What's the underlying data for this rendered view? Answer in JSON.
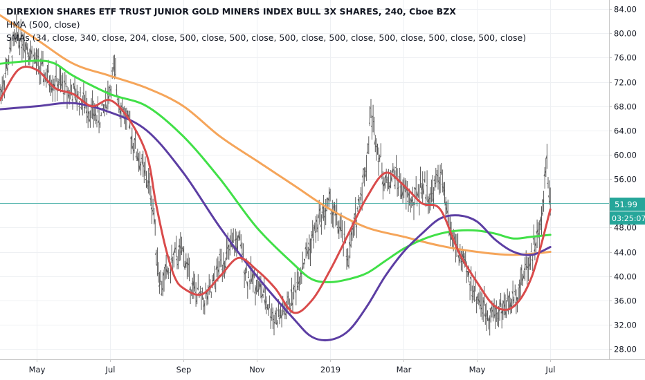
{
  "header": {
    "title": "DIREXION SHARES ETF TRUST JUNIOR GOLD MINERS INDEX BULL 3X SHARES, 240, Cboe BZX",
    "hma_label": "HMA (500, close)",
    "sma_label": "SMAs (34, close, 340, close, 204, close, 500, close, 500, close, 500, close, 500, close, 500, close, 500, close, 500, close)"
  },
  "price_tag": {
    "price": "51.99",
    "countdown": "03:25:07"
  },
  "colors": {
    "price": "#5a5a5a",
    "hma": "#6a6a6a",
    "sma34": "#d94b4b",
    "sma204": "#41e048",
    "sma340": "#f5a55a",
    "sma500": "#5c3ea3",
    "last_price_line": "#26a69a",
    "price_tag": "#26a69a"
  },
  "chart_data": {
    "type": "line",
    "title": "DIREXION SHARES ETF TRUST JUNIOR GOLD MINERS INDEX BULL 3X SHARES, 240, Cboe BZX",
    "y_ticks": [
      "28.00",
      "32.00",
      "36.00",
      "40.00",
      "44.00",
      "48.00",
      "52.00",
      "56.00",
      "60.00",
      "64.00",
      "68.00",
      "72.00",
      "76.00",
      "80.00",
      "84.00"
    ],
    "ylim": [
      26.3,
      85.5
    ],
    "x_ticks": [
      "May",
      "Jul",
      "Sep",
      "Nov",
      "2019",
      "Mar",
      "May",
      "Jul"
    ],
    "xlim": [
      0,
      16.6
    ],
    "x_tick_pos": [
      1,
      3,
      5,
      7,
      9,
      11,
      13,
      15
    ],
    "last_price": 51.99,
    "grid": true,
    "series": [
      {
        "name": "price",
        "style": "bars",
        "x": [
          0,
          0.25,
          0.5,
          0.75,
          1,
          1.25,
          1.5,
          1.75,
          2,
          2.25,
          2.5,
          2.75,
          3,
          3.1,
          3.25,
          3.5,
          3.75,
          4,
          4.1,
          4.2,
          4.3,
          4.4,
          4.5,
          4.75,
          5,
          5.25,
          5.5,
          5.75,
          6,
          6.25,
          6.5,
          6.75,
          7,
          7.25,
          7.5,
          7.75,
          8,
          8.25,
          8.5,
          8.75,
          9,
          9.25,
          9.5,
          9.75,
          10,
          10.1,
          10.25,
          10.4,
          10.5,
          10.75,
          11,
          11.25,
          11.5,
          11.75,
          12,
          12.25,
          12.5,
          12.75,
          13,
          13.25,
          13.5,
          13.75,
          14,
          14.25,
          14.5,
          14.75,
          14.9,
          15
        ],
        "values": [
          70,
          76,
          80,
          78,
          75,
          73,
          72,
          71,
          70,
          69,
          67,
          66,
          71,
          74,
          69,
          65,
          60,
          56,
          54,
          50,
          42,
          38,
          40,
          43,
          44,
          38,
          36,
          37,
          42,
          44,
          46,
          40,
          39,
          36,
          33,
          34,
          37,
          42,
          46,
          50,
          52,
          48,
          43,
          51,
          59,
          67,
          63,
          58,
          55,
          57,
          54,
          52,
          55,
          53,
          57,
          48,
          44,
          40,
          37,
          34,
          34,
          35,
          36,
          40,
          44,
          48,
          60,
          52
        ]
      },
      {
        "name": "SMA 34",
        "x": [
          0,
          0.5,
          1,
          1.5,
          2,
          2.5,
          3,
          3.5,
          4,
          4.25,
          4.5,
          4.75,
          5,
          5.5,
          6,
          6.5,
          7,
          7.5,
          8,
          8.5,
          9,
          9.5,
          10,
          10.5,
          11,
          11.5,
          12,
          12.5,
          13,
          13.5,
          14,
          14.5,
          15
        ],
        "values": [
          69,
          74,
          74,
          71,
          70,
          68,
          69,
          66,
          60,
          52,
          45,
          40,
          38,
          37,
          40,
          43,
          41,
          38,
          34,
          36,
          41,
          47,
          53,
          57,
          55,
          52,
          51,
          44,
          39,
          35,
          35,
          40,
          51
        ]
      },
      {
        "name": "SMA 204",
        "x": [
          0,
          1,
          1.5,
          2,
          3,
          4,
          5,
          6,
          7,
          8,
          8.5,
          9,
          9.5,
          10,
          10.5,
          11,
          11.5,
          12,
          12.5,
          13,
          13.5,
          14,
          14.5,
          15
        ],
        "values": [
          75,
          75.5,
          75,
          73,
          70,
          68,
          63,
          56,
          48,
          42,
          39.5,
          39,
          39.5,
          40.5,
          42.5,
          44.5,
          46,
          47,
          47.5,
          47.5,
          47,
          46.2,
          46.5,
          46.8
        ]
      },
      {
        "name": "SMA 340",
        "x": [
          0,
          1,
          2,
          3,
          4,
          5,
          6,
          7,
          8,
          9,
          10,
          11,
          12,
          13,
          14,
          15
        ],
        "values": [
          83,
          79,
          75,
          73,
          71,
          68,
          63,
          59,
          55,
          51,
          48,
          46.5,
          45,
          44,
          43.5,
          44
        ]
      },
      {
        "name": "SMA 500",
        "x": [
          0,
          1,
          2,
          3,
          4,
          5,
          6,
          7,
          8,
          8.5,
          9,
          9.5,
          10,
          10.5,
          11,
          11.5,
          12,
          12.5,
          13,
          13.5,
          14,
          14.5,
          15
        ],
        "values": [
          67.5,
          68,
          68.5,
          67,
          64,
          57,
          48,
          40,
          33,
          30,
          29.5,
          31,
          35,
          40,
          44,
          47,
          49.5,
          50,
          49,
          46,
          44,
          43.5,
          44.8
        ]
      }
    ]
  }
}
